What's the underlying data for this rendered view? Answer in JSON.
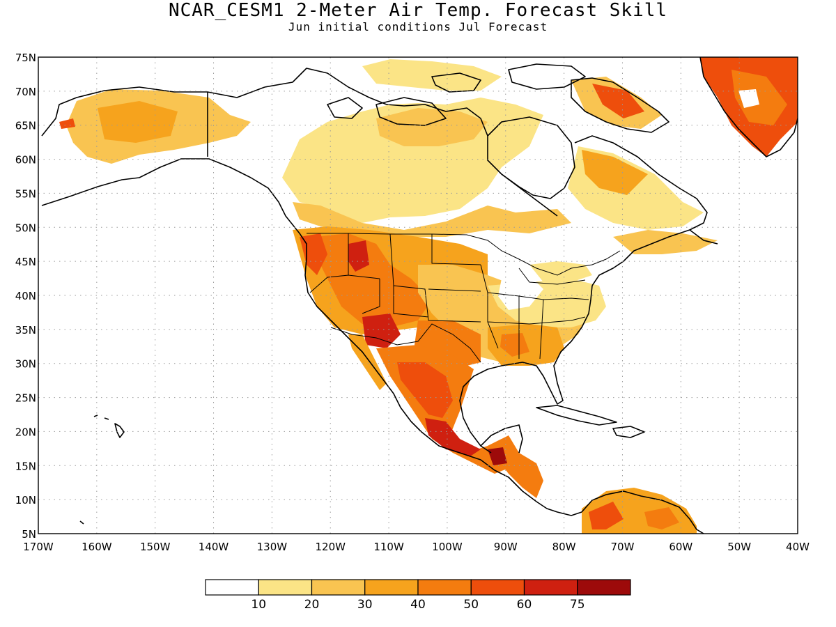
{
  "title": "NCAR_CESM1 2-Meter Air Temp. Forecast Skill",
  "subtitle": "Jun initial conditions  Jul Forecast",
  "map": {
    "lon_range": [
      -170,
      -40
    ],
    "lat_range": [
      5,
      75
    ],
    "lon_ticks": [
      "170W",
      "160W",
      "150W",
      "140W",
      "130W",
      "120W",
      "110W",
      "100W",
      "90W",
      "80W",
      "70W",
      "60W",
      "50W",
      "40W"
    ],
    "lat_ticks": [
      "5N",
      "10N",
      "15N",
      "20N",
      "25N",
      "30N",
      "35N",
      "40N",
      "45N",
      "50N",
      "55N",
      "60N",
      "65N",
      "70N",
      "75N"
    ],
    "gridlines": "dotted",
    "region": "North America"
  },
  "colorbar": {
    "labels": [
      "10",
      "20",
      "30",
      "40",
      "50",
      "60",
      "75"
    ],
    "colors": [
      "#ffffff",
      "#fbe486",
      "#f9c451",
      "#f6a31d",
      "#f47c0f",
      "#ee4e0c",
      "#cf2010",
      "#9d0a0a"
    ]
  },
  "colors": {
    "land_outline": "#000000",
    "grid": "#9a9a9a"
  }
}
